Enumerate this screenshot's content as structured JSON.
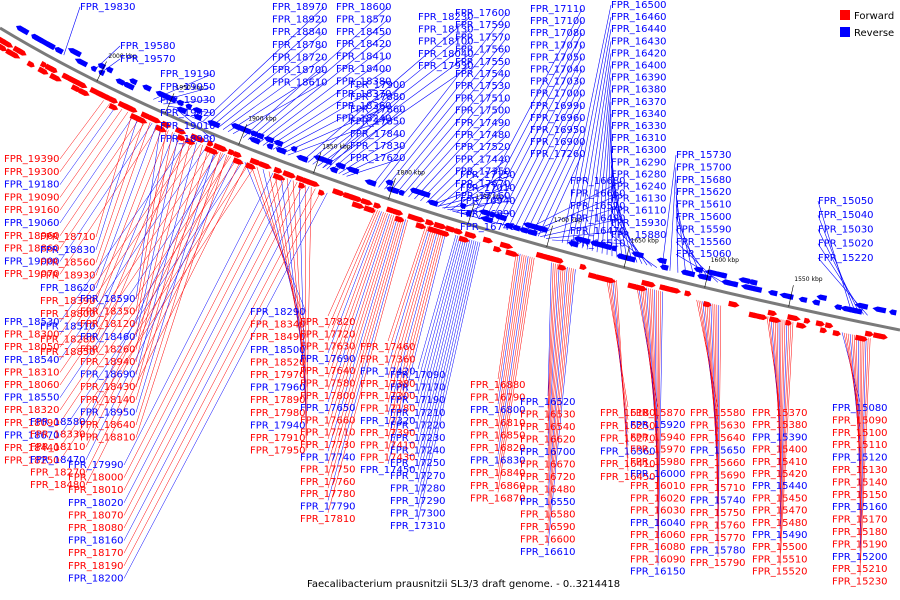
{
  "caption": "Faecalibacterium prausnitzii SL3/3 draft genome. - 0..3214418",
  "legend": {
    "forward_label": "Forward",
    "reverse_label": "Reverse",
    "forward_color": "#ff0000",
    "reverse_color": "#0000ff"
  },
  "ticks": [
    "2000 kbp",
    "1950 kbp",
    "1900 kbp",
    "1850 kbp",
    "1800 kbp",
    "1750 kbp",
    "1700 kbp",
    "1650 kbp",
    "1600 kbp",
    "1550 kbp"
  ],
  "labels_above": [
    "FPR_19830",
    "FPR_19580",
    "FPR_19570",
    "FPR_19190",
    "FPR_19050",
    "FPR_19030",
    "FPR_19020",
    "FPR_19010",
    "FPR_18980",
    "FPR_18970",
    "FPR_18920",
    "FPR_18840",
    "FPR_18780",
    "FPR_18720",
    "FPR_18700",
    "FPR_18610",
    "FPR_18600",
    "FPR_18570",
    "FPR_18450",
    "FPR_18420",
    "FPR_18410",
    "FPR_18400",
    "FPR_18380",
    "FPR_18370",
    "FPR_18360",
    "FPR_18240",
    "FPR_18230",
    "FPR_18130",
    "FPR_18100",
    "FPR_18040",
    "FPR_17930",
    "FPR_17900",
    "FPR_17880",
    "FPR_17860",
    "FPR_17850",
    "FPR_17840",
    "FPR_17830",
    "FPR_17620",
    "FPR_17600",
    "FPR_17590",
    "FPR_17570",
    "FPR_17560",
    "FPR_17550",
    "FPR_17540",
    "FPR_17530",
    "FPR_17510",
    "FPR_17500",
    "FPR_17490",
    "FPR_17480",
    "FPR_17520",
    "FPR_17440",
    "FPR_17350",
    "FPR_17670",
    "FPR_17160",
    "FPR_17110",
    "FPR_17100",
    "FPR_17080",
    "FPR_17070",
    "FPR_17050",
    "FPR_17040",
    "FPR_17030",
    "FPR_17000",
    "FPR_16990",
    "FPR_16960",
    "FPR_16950",
    "FPR_16900",
    "FPR_17260",
    "FPR_17150",
    "FPR_17010",
    "FPR_16940",
    "FPR_16890",
    "FPR_16740",
    "FPR_16680",
    "FPR_16660",
    "FPR_16570",
    "FPR_16490",
    "FPR_16470",
    "FPR_16510",
    "FPR_16500",
    "FPR_16460",
    "FPR_16440",
    "FPR_16430",
    "FPR_16420",
    "FPR_16400",
    "FPR_16390",
    "FPR_16380",
    "FPR_16370",
    "FPR_16340",
    "FPR_16330",
    "FPR_16310",
    "FPR_16300",
    "FPR_16290",
    "FPR_16280",
    "FPR_16240",
    "FPR_16130",
    "FPR_16110",
    "FPR_15930",
    "FPR_15880",
    "FPR_15730",
    "FPR_15700",
    "FPR_15680",
    "FPR_15620",
    "FPR_15610",
    "FPR_15600",
    "FPR_15590",
    "FPR_15560",
    "FPR_15060",
    "FPR_15050",
    "FPR_15040",
    "FPR_15030",
    "FPR_15020",
    "FPR_15220"
  ],
  "labels_left": [
    "FPR_19390",
    "FPR_19300",
    "FPR_19180",
    "FPR_19090",
    "FPR_19160",
    "FPR_19060",
    "FPR_18960",
    "FPR_18860",
    "FPR_19000",
    "FPR_19070",
    "FPR_18710",
    "FPR_18830",
    "FPR_18560",
    "FPR_18930",
    "FPR_18620",
    "FPR_18390",
    "FPR_18800",
    "FPR_18510",
    "FPR_18280",
    "FPR_18850",
    "FPR_18590",
    "FPR_18350",
    "FPR_18120",
    "FPR_18460",
    "FPR_18260",
    "FPR_18940",
    "FPR_18690",
    "FPR_18430",
    "FPR_18140",
    "FPR_18950",
    "FPR_18640",
    "FPR_18810",
    "FPR_18530",
    "FPR_18300",
    "FPR_18050",
    "FPR_18540",
    "FPR_18310",
    "FPR_18060",
    "FPR_18550",
    "FPR_18320",
    "FPR_18090",
    "FPR_18670",
    "FPR_18440",
    "FPR_18250",
    "FPR_18580",
    "FPR_18330",
    "FPR_18110",
    "FPR_18470",
    "FPR_18270",
    "FPR_18480",
    "FPR_18290",
    "FPR_18340",
    "FPR_18490",
    "FPR_18500",
    "FPR_18520",
    "FPR_17970",
    "FPR_17960",
    "FPR_17890",
    "FPR_17980",
    "FPR_17940",
    "FPR_17910",
    "FPR_17950",
    "FPR_17990",
    "FPR_18000",
    "FPR_18010",
    "FPR_18020",
    "FPR_18070",
    "FPR_18080",
    "FPR_18160",
    "FPR_18170",
    "FPR_18190",
    "FPR_18200",
    "FPR_18210",
    "FPR_18220"
  ],
  "labels_below": [
    "FPR_17820",
    "FPR_17720",
    "FPR_17630",
    "FPR_17690",
    "FPR_17640",
    "FPR_17580",
    "FPR_17800",
    "FPR_17650",
    "FPR_17660",
    "FPR_17710",
    "FPR_17730",
    "FPR_17740",
    "FPR_17750",
    "FPR_17760",
    "FPR_17780",
    "FPR_17790",
    "FPR_17810",
    "FPR_17460",
    "FPR_17360",
    "FPR_17420",
    "FPR_17380",
    "FPR_17200",
    "FPR_17180",
    "FPR_17320",
    "FPR_17390",
    "FPR_17410",
    "FPR_17430",
    "FPR_17450",
    "FPR_17090",
    "FPR_17170",
    "FPR_17190",
    "FPR_17210",
    "FPR_17220",
    "FPR_17230",
    "FPR_17240",
    "FPR_17250",
    "FPR_17270",
    "FPR_17280",
    "FPR_17290",
    "FPR_17300",
    "FPR_17310",
    "FPR_16880",
    "FPR_16790",
    "FPR_16800",
    "FPR_16810",
    "FPR_16850",
    "FPR_16820",
    "FPR_16830",
    "FPR_16840",
    "FPR_16860",
    "FPR_16870",
    "FPR_16520",
    "FPR_16530",
    "FPR_16540",
    "FPR_16620",
    "FPR_16700",
    "FPR_16670",
    "FPR_16720",
    "FPR_16480",
    "FPR_16550",
    "FPR_16580",
    "FPR_16590",
    "FPR_16600",
    "FPR_16610",
    "FPR_16180",
    "FPR_16250",
    "FPR_16270",
    "FPR_16360",
    "FPR_16410",
    "FPR_16450",
    "FPR_15870",
    "FPR_15920",
    "FPR_15940",
    "FPR_15970",
    "FPR_15980",
    "FPR_16000",
    "FPR_16010",
    "FPR_16020",
    "FPR_16030",
    "FPR_16040",
    "FPR_16060",
    "FPR_16080",
    "FPR_16090",
    "FPR_16150",
    "FPR_15580",
    "FPR_15630",
    "FPR_15640",
    "FPR_15650",
    "FPR_15660",
    "FPR_15690",
    "FPR_15710",
    "FPR_15740",
    "FPR_15750",
    "FPR_15760",
    "FPR_15770",
    "FPR_15780",
    "FPR_15790",
    "FPR_15370",
    "FPR_15380",
    "FPR_15390",
    "FPR_15400",
    "FPR_15410",
    "FPR_15420",
    "FPR_15440",
    "FPR_15450",
    "FPR_15470",
    "FPR_15480",
    "FPR_15490",
    "FPR_15500",
    "FPR_15510",
    "FPR_15520",
    "FPR_15080",
    "FPR_15090",
    "FPR_15100",
    "FPR_15110",
    "FPR_15120",
    "FPR_15130",
    "FPR_15140",
    "FPR_15150",
    "FPR_15160",
    "FPR_15170",
    "FPR_15180",
    "FPR_15190",
    "FPR_15200",
    "FPR_15210",
    "FPR_15230"
  ]
}
